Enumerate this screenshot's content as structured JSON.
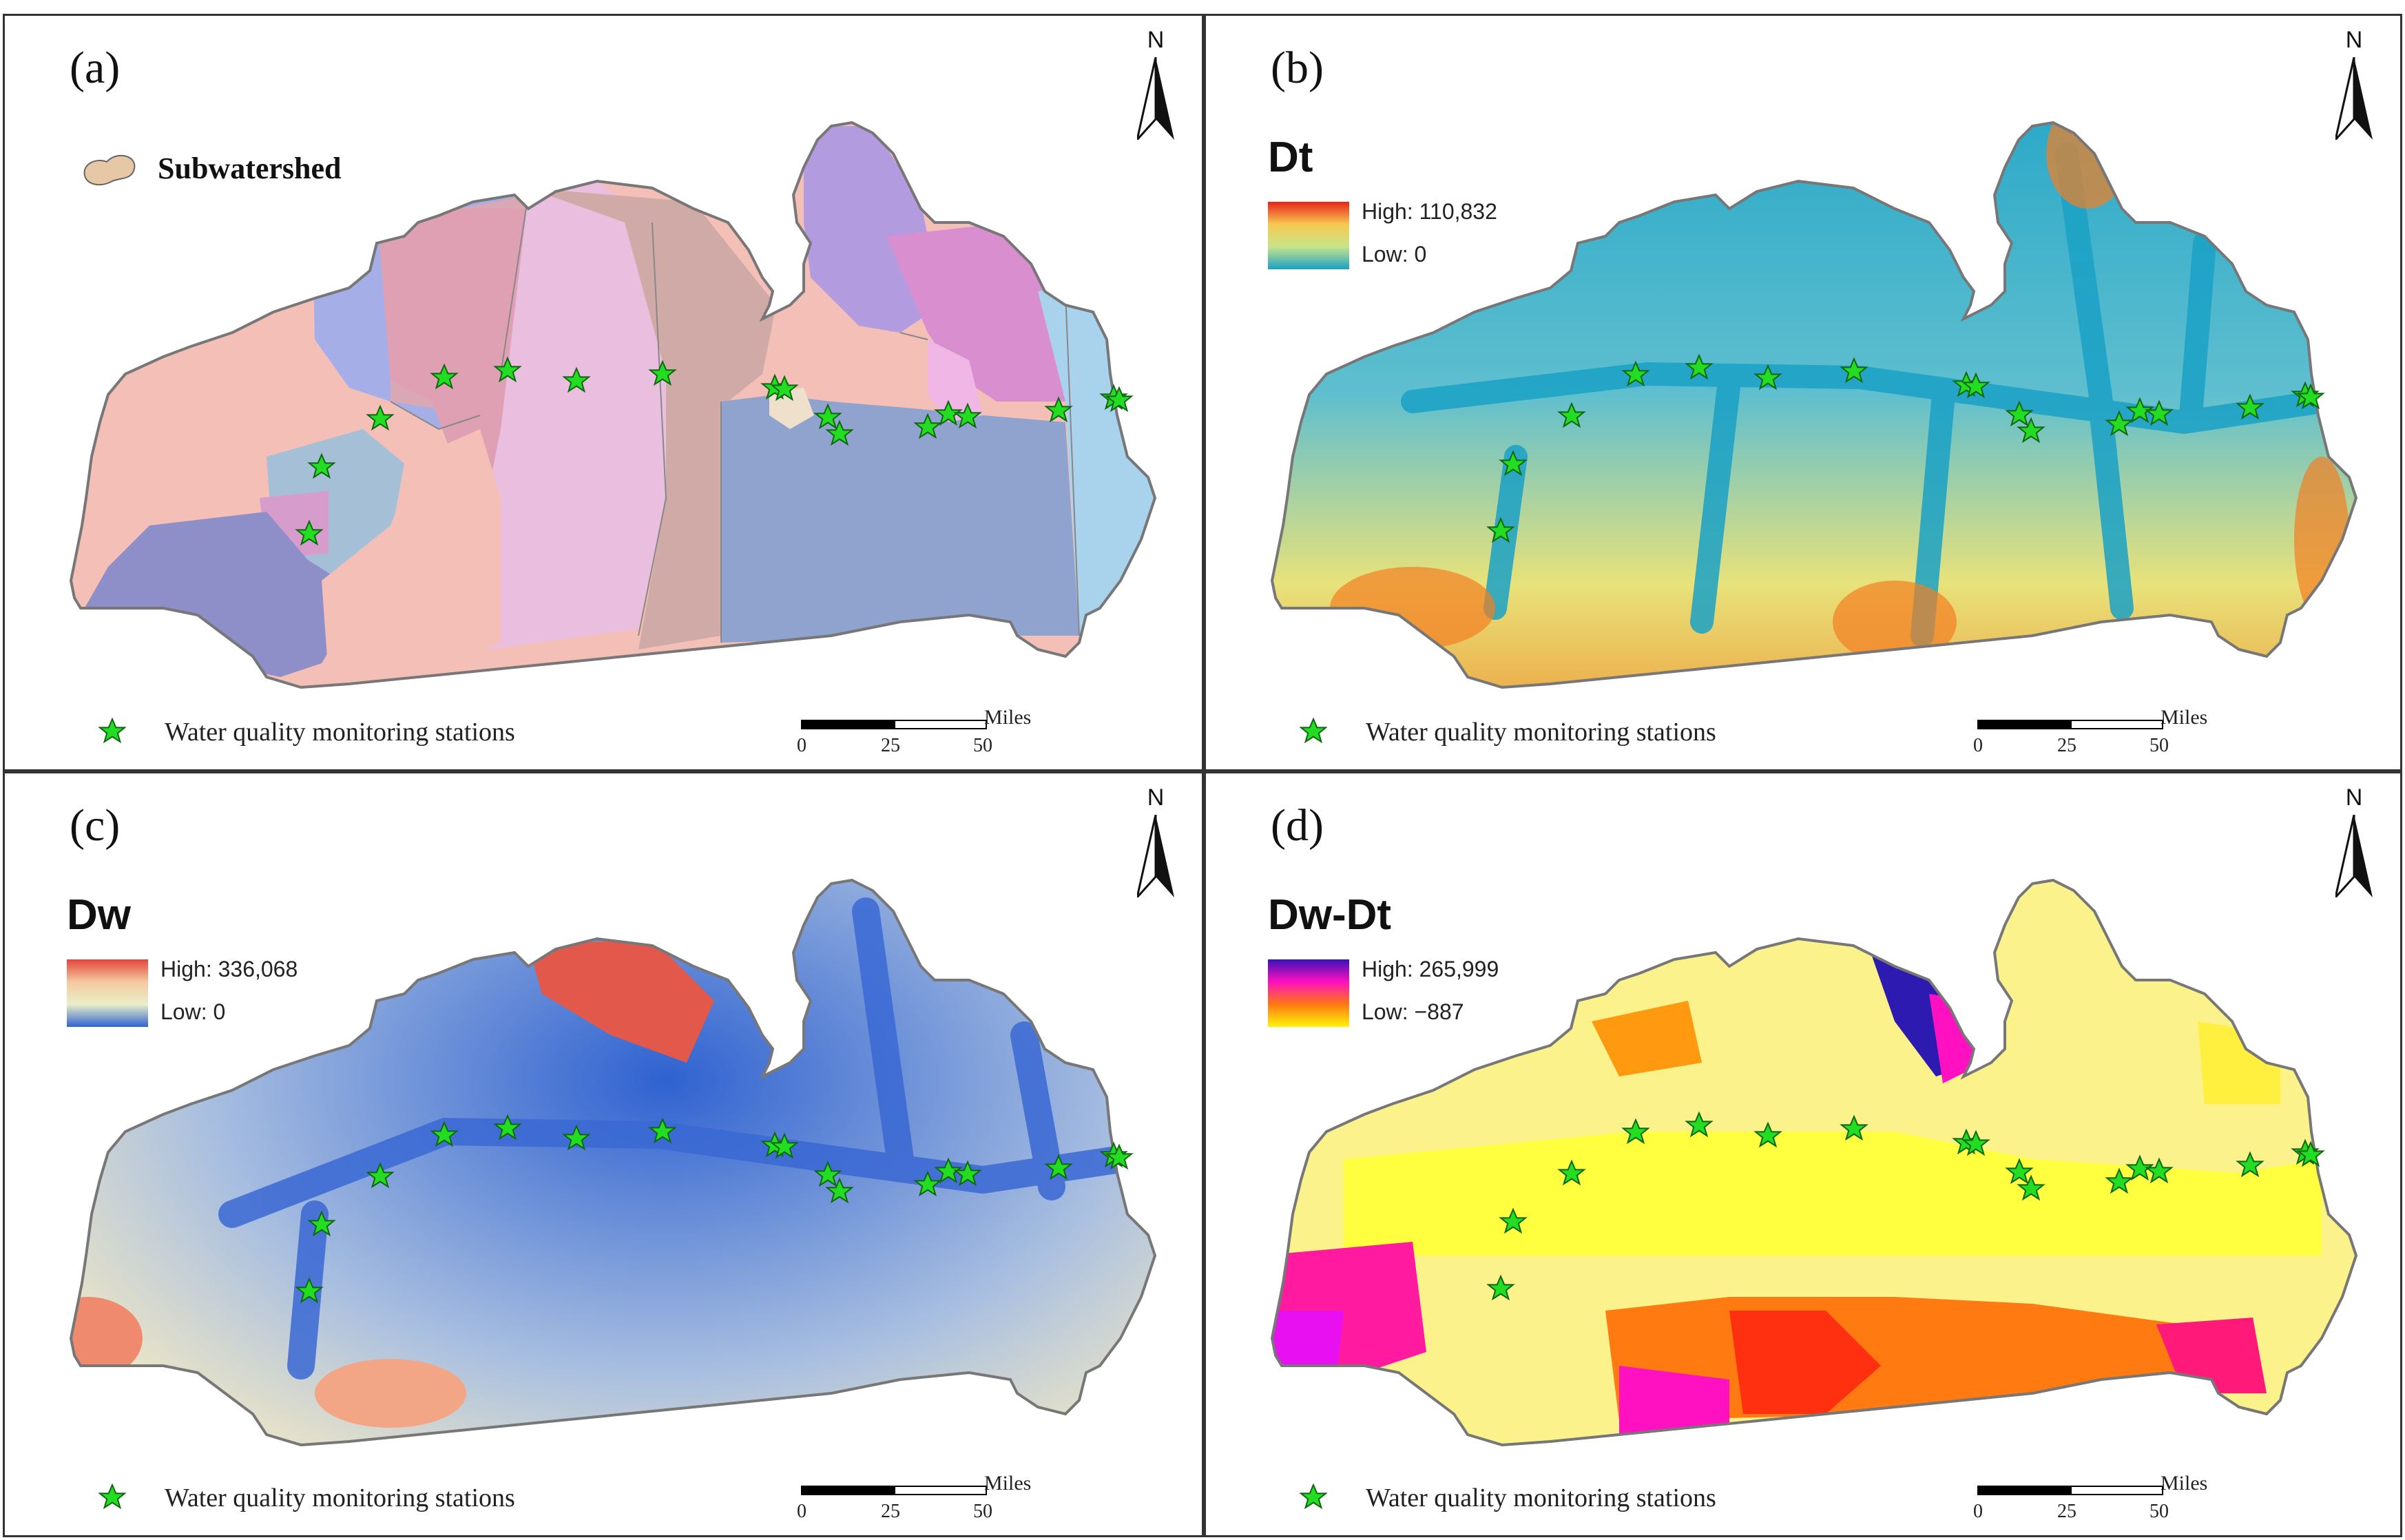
{
  "figure": {
    "north_label": "N",
    "stations_legend": "Water quality monitoring stations",
    "station_icon": "green-star-icon",
    "station_color": "#22dd22",
    "outline_color": "#777777",
    "scale": {
      "ticks": [
        "0",
        "25",
        "50"
      ],
      "unit": "Miles"
    }
  },
  "panels": [
    {
      "id": "a",
      "label": "(a)",
      "legend_kind": "categorical",
      "legend_title": "Subwatershed",
      "legend_swatch_color": "#e6c7a6",
      "scale_ticks": [
        "0",
        "25",
        "50"
      ],
      "scale_unit": "Miles"
    },
    {
      "id": "b",
      "label": "(b)",
      "legend_kind": "continuous",
      "legend_title": "Dt",
      "high_label": "High: 110,832",
      "low_label": "Low: 0",
      "ramp_colors": [
        "#e8231b",
        "#f7c94f",
        "#c8e48a",
        "#1aa1c6"
      ],
      "scale_ticks": [
        "0",
        "25",
        "50"
      ],
      "scale_unit": "Miles"
    },
    {
      "id": "c",
      "label": "(c)",
      "legend_kind": "continuous",
      "legend_title": "Dw",
      "high_label": "High: 336,068",
      "low_label": "Low: 0",
      "ramp_colors": [
        "#e4463a",
        "#f4c9a0",
        "#e9efc8",
        "#2f62d1"
      ],
      "scale_ticks": [
        "0",
        "25",
        "50"
      ],
      "scale_unit": "Miles"
    },
    {
      "id": "d",
      "label": "(d)",
      "legend_kind": "continuous",
      "legend_title": "Dw-Dt",
      "high_label": "High: 265,999",
      "low_label": "Low: −887",
      "ramp_colors": [
        "#3b10b8",
        "#ff10c0",
        "#ff7a10",
        "#fff40a"
      ],
      "scale_ticks": [
        "0",
        "25",
        "50"
      ],
      "scale_unit": "Miles"
    }
  ]
}
